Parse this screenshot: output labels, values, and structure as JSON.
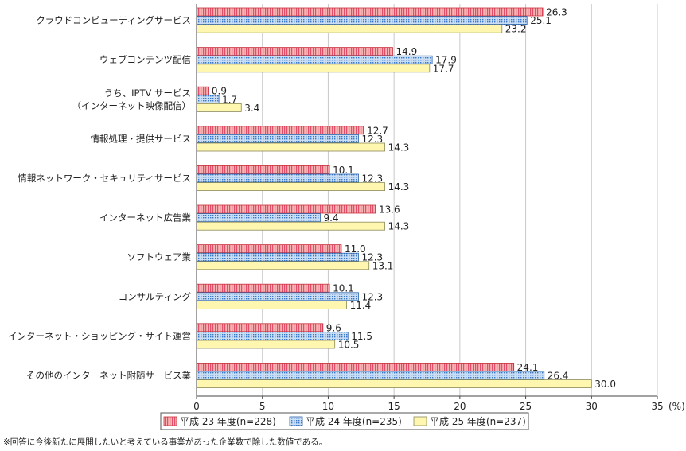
{
  "chart_data": {
    "type": "bar",
    "orientation": "horizontal",
    "unit": "(%)",
    "xlim": [
      0,
      35
    ],
    "xticks": [
      0,
      5,
      10,
      15,
      20,
      25,
      30,
      35
    ],
    "grid": true,
    "legend_position": "bottom",
    "categories": [
      [
        "クラウドコンピューティングサービス"
      ],
      [
        "ウェブコンテンツ配信"
      ],
      [
        "うち、IPTV サービス",
        "（インターネット映像配信）"
      ],
      [
        "情報処理・提供サービス"
      ],
      [
        "情報ネットワーク・セキュリティサービス"
      ],
      [
        "インターネット広告業"
      ],
      [
        "ソフトウェア業"
      ],
      [
        "コンサルティング"
      ],
      [
        "インターネット・ショッピング・サイト運営"
      ],
      [
        "その他のインターネット附随サービス業"
      ]
    ],
    "series": [
      {
        "name": "平成 23 年度(n=228)",
        "values": [
          26.3,
          14.9,
          0.9,
          12.7,
          10.1,
          13.6,
          11.0,
          10.1,
          9.6,
          24.1
        ],
        "color": "#f08a8a",
        "pattern": "vertical-stripes"
      },
      {
        "name": "平成 24 年度(n=235)",
        "values": [
          25.1,
          17.9,
          1.7,
          12.3,
          12.3,
          9.4,
          12.3,
          12.3,
          11.5,
          26.4
        ],
        "color": "#9ec4ec",
        "pattern": "dots"
      },
      {
        "name": "平成 25 年度(n=237)",
        "values": [
          23.2,
          17.7,
          3.4,
          14.3,
          14.3,
          14.3,
          13.1,
          11.4,
          10.5,
          30.0
        ],
        "color": "#fff6b0",
        "pattern": "solid"
      }
    ]
  },
  "footnote": "※回答に今後新たに展開したいと考えている事業があった企業数で除した数値である。"
}
